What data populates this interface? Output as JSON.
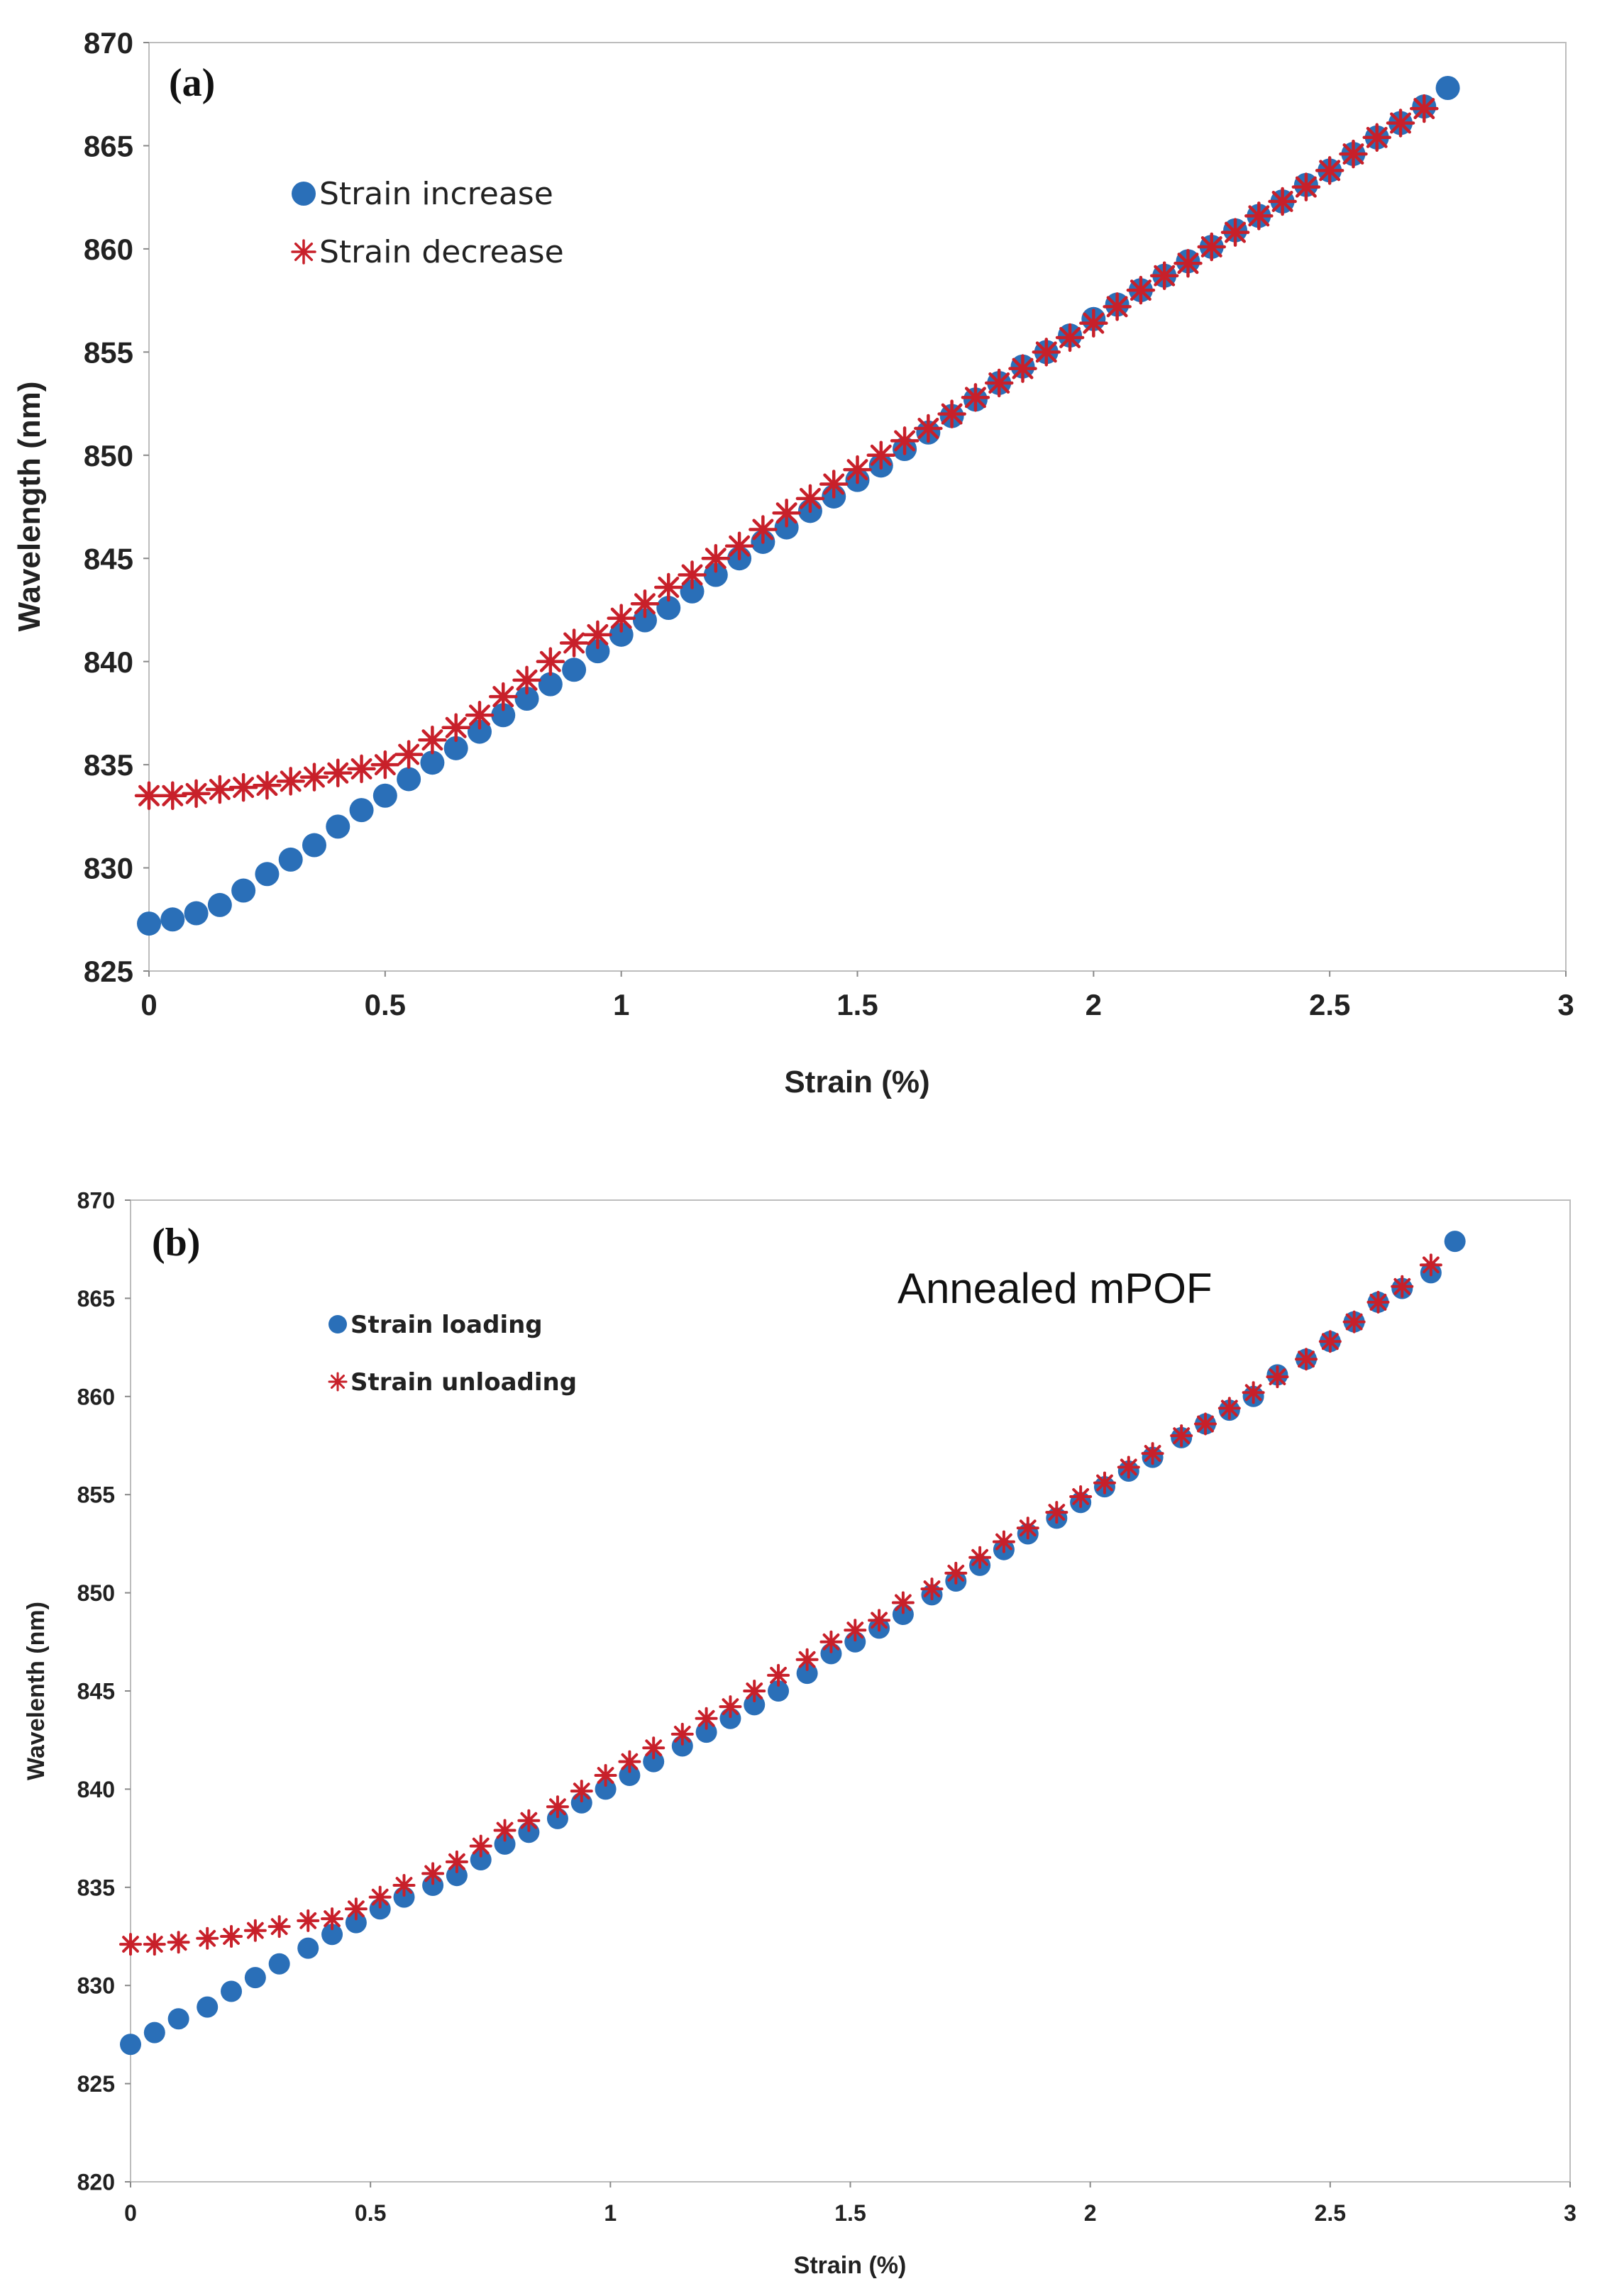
{
  "colors": {
    "increase": "#2a6fb8",
    "decrease": "#c8202a"
  },
  "chart_data": [
    {
      "type": "scatter",
      "panel_label": "(a)",
      "annotation": "",
      "xlabel": "Strain (%)",
      "ylabel": "Wavelength (nm)",
      "xlim": [
        0,
        3
      ],
      "ylim": [
        825,
        870
      ],
      "xticks": [
        0,
        0.5,
        1,
        1.5,
        2,
        2.5,
        3
      ],
      "xtick_labels": [
        "0",
        "0.5",
        "1",
        "1.5",
        "2",
        "2.5",
        "3"
      ],
      "yticks": [
        825,
        830,
        835,
        840,
        845,
        850,
        855,
        860,
        865,
        870
      ],
      "ytick_labels": [
        "825",
        "830",
        "835",
        "840",
        "845",
        "850",
        "855",
        "860",
        "865",
        "870"
      ],
      "legend_placement": "top-left",
      "series": [
        {
          "name": "Strain increase",
          "marker": "circle",
          "x": [
            0,
            0.05,
            0.1,
            0.15,
            0.2,
            0.25,
            0.3,
            0.35,
            0.4,
            0.45,
            0.5,
            0.55,
            0.6,
            0.65,
            0.7,
            0.75,
            0.8,
            0.85,
            0.9,
            0.95,
            1,
            1.05,
            1.1,
            1.15,
            1.2,
            1.25,
            1.3,
            1.35,
            1.4,
            1.45,
            1.5,
            1.55,
            1.6,
            1.65,
            1.7,
            1.75,
            1.8,
            1.85,
            1.9,
            1.95,
            2,
            2.05,
            2.1,
            2.15,
            2.2,
            2.25,
            2.3,
            2.35,
            2.4,
            2.45,
            2.5,
            2.55,
            2.6,
            2.65,
            2.7,
            2.75
          ],
          "y": [
            827.3,
            827.5,
            827.8,
            828.2,
            828.9,
            829.7,
            830.4,
            831.1,
            832.0,
            832.8,
            833.5,
            834.3,
            835.1,
            835.8,
            836.6,
            837.4,
            838.2,
            838.9,
            839.6,
            840.5,
            841.3,
            842.0,
            842.6,
            843.4,
            844.2,
            845.0,
            845.8,
            846.5,
            847.3,
            848.0,
            848.8,
            849.5,
            850.3,
            851.1,
            851.9,
            852.7,
            853.5,
            854.3,
            855.0,
            855.8,
            856.6,
            857.3,
            858.0,
            858.7,
            859.4,
            860.1,
            860.9,
            861.6,
            862.3,
            863.1,
            863.8,
            864.6,
            865.4,
            866.1,
            866.9,
            867.8
          ]
        },
        {
          "name": "Strain decrease",
          "marker": "asterisk",
          "x": [
            0,
            0.05,
            0.1,
            0.15,
            0.2,
            0.25,
            0.3,
            0.35,
            0.4,
            0.45,
            0.5,
            0.55,
            0.6,
            0.65,
            0.7,
            0.75,
            0.8,
            0.85,
            0.9,
            0.95,
            1,
            1.05,
            1.1,
            1.15,
            1.2,
            1.25,
            1.3,
            1.35,
            1.4,
            1.45,
            1.5,
            1.55,
            1.6,
            1.65,
            1.7,
            1.75,
            1.8,
            1.85,
            1.9,
            1.95,
            2,
            2.05,
            2.1,
            2.15,
            2.2,
            2.25,
            2.3,
            2.35,
            2.4,
            2.45,
            2.5,
            2.55,
            2.6,
            2.65,
            2.7
          ],
          "y": [
            833.5,
            833.5,
            833.6,
            833.8,
            833.9,
            834.0,
            834.2,
            834.4,
            834.6,
            834.8,
            835.0,
            835.5,
            836.2,
            836.8,
            837.4,
            838.3,
            839.1,
            840.0,
            840.9,
            841.3,
            842.1,
            842.8,
            843.6,
            844.2,
            845.0,
            845.6,
            846.4,
            847.2,
            847.9,
            848.6,
            849.3,
            850.0,
            850.7,
            851.3,
            852.0,
            852.8,
            853.5,
            854.2,
            855.0,
            855.7,
            856.4,
            857.2,
            858.0,
            858.7,
            859.3,
            860.1,
            860.8,
            861.6,
            862.3,
            863.0,
            863.8,
            864.6,
            865.4,
            866.1,
            866.8
          ]
        }
      ]
    },
    {
      "type": "scatter",
      "panel_label": "(b)",
      "annotation": "Annealed mPOF",
      "xlabel": "Strain (%)",
      "ylabel": "Wavelenth (nm)",
      "xlim": [
        0,
        3
      ],
      "ylim": [
        820,
        870
      ],
      "xticks": [
        0,
        0.5,
        1,
        1.5,
        2,
        2.5,
        3
      ],
      "xtick_labels": [
        "0",
        "0.5",
        "1",
        "1.5",
        "2",
        "2.5",
        "3"
      ],
      "yticks": [
        820,
        825,
        830,
        835,
        840,
        845,
        850,
        855,
        860,
        865,
        870
      ],
      "ytick_labels": [
        "820",
        "825",
        "830",
        "835",
        "840",
        "845",
        "850",
        "855",
        "860",
        "865",
        "870"
      ],
      "legend_placement": "top-left",
      "series": [
        {
          "name": "Strain loading",
          "marker": "circle",
          "x": [
            0,
            0.05,
            0.1,
            0.16,
            0.21,
            0.26,
            0.31,
            0.37,
            0.42,
            0.47,
            0.52,
            0.57,
            0.63,
            0.68,
            0.73,
            0.78,
            0.83,
            0.89,
            0.94,
            0.99,
            1.04,
            1.09,
            1.15,
            1.2,
            1.25,
            1.3,
            1.35,
            1.41,
            1.46,
            1.51,
            1.56,
            1.61,
            1.67,
            1.72,
            1.77,
            1.82,
            1.87,
            1.93,
            1.98,
            2.03,
            2.08,
            2.13,
            2.19,
            2.24,
            2.29,
            2.34,
            2.39,
            2.45,
            2.5,
            2.55,
            2.6,
            2.65,
            2.71,
            2.76
          ],
          "y": [
            827.0,
            827.6,
            828.3,
            828.9,
            829.7,
            830.4,
            831.1,
            831.9,
            832.6,
            833.2,
            833.9,
            834.5,
            835.1,
            835.6,
            836.4,
            837.2,
            837.8,
            838.5,
            839.3,
            840.0,
            840.7,
            841.4,
            842.2,
            842.9,
            843.6,
            844.3,
            845.0,
            845.9,
            846.9,
            847.5,
            848.2,
            848.9,
            849.9,
            850.6,
            851.4,
            852.2,
            853.0,
            853.8,
            854.6,
            855.4,
            856.2,
            856.9,
            857.9,
            858.6,
            859.3,
            860.0,
            861.1,
            861.9,
            862.8,
            863.8,
            864.8,
            865.5,
            866.3,
            867.9
          ]
        },
        {
          "name": "Strain unloading",
          "marker": "asterisk",
          "x": [
            0,
            0.05,
            0.1,
            0.16,
            0.21,
            0.26,
            0.31,
            0.37,
            0.42,
            0.47,
            0.52,
            0.57,
            0.63,
            0.68,
            0.73,
            0.78,
            0.83,
            0.89,
            0.94,
            0.99,
            1.04,
            1.09,
            1.15,
            1.2,
            1.25,
            1.3,
            1.35,
            1.41,
            1.46,
            1.51,
            1.56,
            1.61,
            1.67,
            1.72,
            1.77,
            1.82,
            1.87,
            1.93,
            1.98,
            2.03,
            2.08,
            2.13,
            2.19,
            2.24,
            2.29,
            2.34,
            2.39,
            2.45,
            2.5,
            2.55,
            2.6,
            2.65,
            2.71
          ],
          "y": [
            832.1,
            832.1,
            832.2,
            832.4,
            832.5,
            832.8,
            833.0,
            833.3,
            833.4,
            833.9,
            834.5,
            835.1,
            835.7,
            836.3,
            837.1,
            837.9,
            838.4,
            839.1,
            839.9,
            840.7,
            841.4,
            842.1,
            842.8,
            843.6,
            844.2,
            845.0,
            845.8,
            846.6,
            847.5,
            848.1,
            848.6,
            849.5,
            850.2,
            851.0,
            851.8,
            852.6,
            853.3,
            854.1,
            854.9,
            855.6,
            856.4,
            857.1,
            858.0,
            858.6,
            859.4,
            860.2,
            861.0,
            861.9,
            862.8,
            863.8,
            864.8,
            865.6,
            866.7
          ]
        }
      ]
    }
  ]
}
